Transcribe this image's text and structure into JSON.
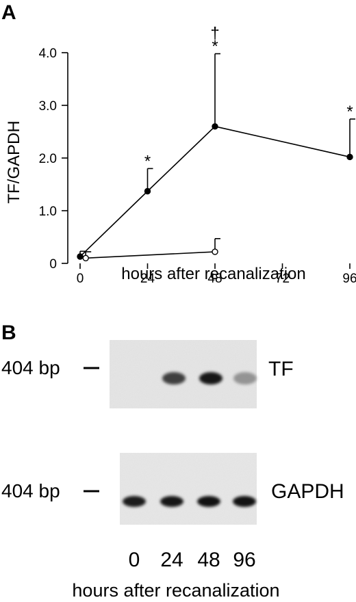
{
  "panels": {
    "a": "A",
    "b": "B"
  },
  "chart_data": {
    "type": "line",
    "xlabel": "hours after recanalization",
    "ylabel": "TF/GAPDH",
    "xlim": [
      0,
      96
    ],
    "ylim": [
      0,
      4.0
    ],
    "xticks": [
      0,
      24,
      48,
      72,
      96
    ],
    "yticks": [
      0,
      1.0,
      2.0,
      3.0,
      4.0
    ],
    "ytick_labels": [
      "0",
      "1.0",
      "2.0",
      "3.0",
      "4.0"
    ],
    "grid": false,
    "legend": "none",
    "series": [
      {
        "marker": "filled-circle",
        "x": [
          0,
          24,
          48,
          96
        ],
        "y": [
          0.13,
          1.37,
          2.6,
          2.02
        ],
        "error_upper": [
          0.1,
          0.43,
          1.38,
          0.72
        ],
        "annotations": [
          {
            "x": 24,
            "text": "*"
          },
          {
            "x": 48,
            "text": "*"
          },
          {
            "x": 48,
            "text": "†"
          },
          {
            "x": 96,
            "text": "*"
          }
        ]
      },
      {
        "marker": "open-circle",
        "x": [
          2,
          48
        ],
        "y": [
          0.1,
          0.22
        ],
        "error_upper": [
          0.12,
          0.25
        ]
      }
    ]
  },
  "gel": {
    "top_gene": "TF",
    "bottom_gene": "GAPDH",
    "size_label": "404 bp",
    "lanes": [
      "0",
      "24",
      "48",
      "96"
    ],
    "top_band_intensity": [
      0.0,
      0.72,
      0.9,
      0.35
    ],
    "bottom_band_intensity": [
      0.88,
      0.9,
      0.92,
      0.92
    ],
    "xlabel": "hours after recanalization"
  }
}
